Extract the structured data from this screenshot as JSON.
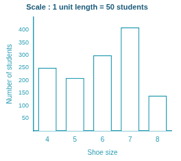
{
  "chart_data": {
    "type": "bar",
    "title": "Scale : 1 unit length = 50 students",
    "x_label": "Shoe size",
    "y_label": "Number of students",
    "categories": [
      "4",
      "5",
      "6",
      "7",
      "8"
    ],
    "values": [
      250,
      210,
      300,
      410,
      140
    ],
    "color": "#2a9db3",
    "ylim": [
      0,
      450
    ],
    "yticks": [
      50,
      100,
      150,
      200,
      250,
      300,
      350,
      400
    ],
    "grid": false
  }
}
